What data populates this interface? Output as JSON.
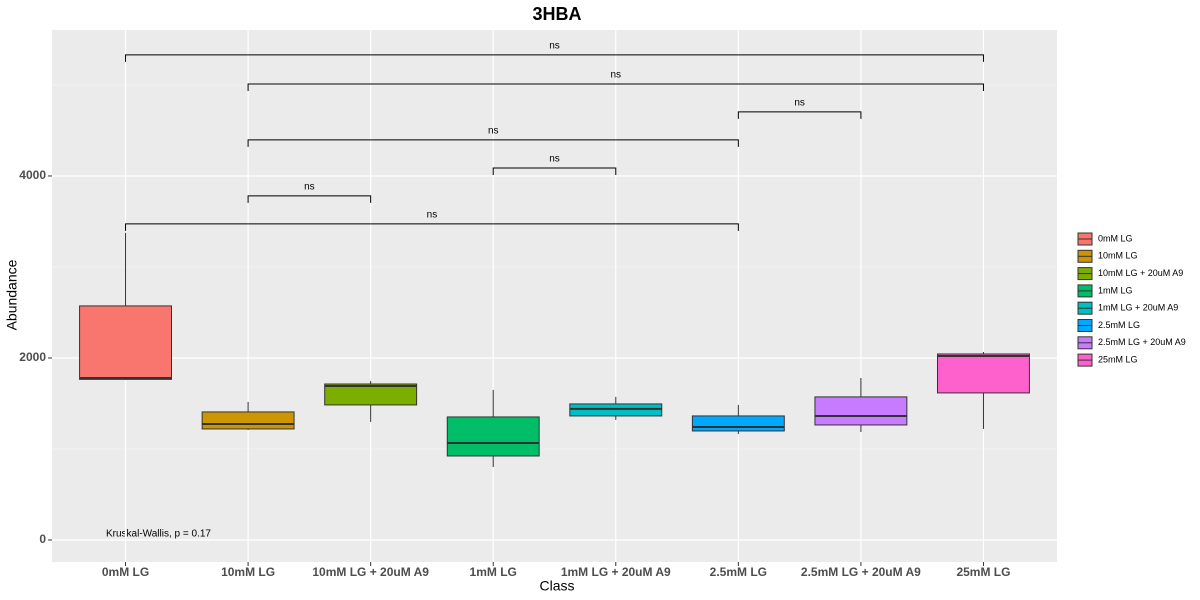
{
  "chart_data": {
    "type": "box",
    "title": "3HBA",
    "x_label": "Class",
    "y_label": "Abundance",
    "annotation": "Kruskal-Wallis, p = 0.17",
    "categories": [
      "0mM LG",
      "10mM LG",
      "10mM LG + 20uM A9",
      "1mM LG",
      "1mM LG + 20uM A9",
      "2.5mM LG",
      "2.5mM LG + 20uM A9",
      "25mM LG"
    ],
    "colors": [
      "#F8766D",
      "#CD9600",
      "#7CAE00",
      "#00BE67",
      "#00BFC4",
      "#00A9FF",
      "#C77CFF",
      "#FF61CC"
    ],
    "boxes": [
      {
        "min": 1760,
        "q1": 1765,
        "median": 1780,
        "q3": 2572,
        "max": 3374
      },
      {
        "min": 1209,
        "q1": 1220,
        "median": 1275,
        "q3": 1407,
        "max": 1517
      },
      {
        "min": 1297,
        "q1": 1484,
        "median": 1692,
        "q3": 1714,
        "max": 1747
      },
      {
        "min": 802,
        "q1": 923,
        "median": 1066,
        "q3": 1352,
        "max": 1649
      },
      {
        "min": 1319,
        "q1": 1363,
        "median": 1440,
        "q3": 1495,
        "max": 1572
      },
      {
        "min": 1165,
        "q1": 1198,
        "median": 1242,
        "q3": 1363,
        "max": 1484
      },
      {
        "min": 1187,
        "q1": 1264,
        "median": 1363,
        "q3": 1572,
        "max": 1780
      },
      {
        "min": 1220,
        "q1": 1616,
        "median": 2022,
        "q3": 2044,
        "max": 2066
      }
    ],
    "comparisons": [
      {
        "from": 0,
        "to": 7,
        "y": 5330,
        "label": "ns"
      },
      {
        "from": 1,
        "to": 7,
        "y": 5011,
        "label": "ns"
      },
      {
        "from": 5,
        "to": 6,
        "y": 4704,
        "label": "ns"
      },
      {
        "from": 1,
        "to": 5,
        "y": 4396,
        "label": "ns"
      },
      {
        "from": 3,
        "to": 4,
        "y": 4088,
        "label": "ns"
      },
      {
        "from": 1,
        "to": 2,
        "y": 3781,
        "label": "ns"
      },
      {
        "from": 0,
        "to": 5,
        "y": 3473,
        "label": "ns"
      }
    ],
    "ylim": [
      -242,
      5604
    ],
    "yticks": [
      0,
      2000,
      4000
    ],
    "y_minor_grid": [
      1000,
      3000,
      5000
    ],
    "grid": true,
    "legend": "right"
  }
}
